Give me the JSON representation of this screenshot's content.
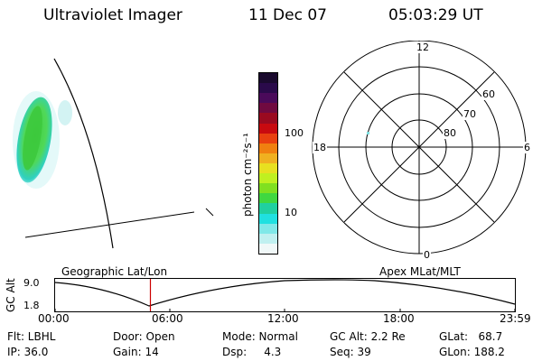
{
  "header": {
    "instrument": "Ultraviolet Imager",
    "date": "11 Dec 07",
    "time": "05:03:29 UT"
  },
  "colorbar": {
    "unit_label": "photon cm⁻²s⁻¹",
    "ticks": [
      "100",
      "10"
    ],
    "colors": [
      "#1a0a2e",
      "#2a0a4a",
      "#4a0a5a",
      "#700a40",
      "#9a0a20",
      "#c80a10",
      "#e84010",
      "#f08010",
      "#f0b020",
      "#e8e020",
      "#c0f020",
      "#80e020",
      "#40d840",
      "#20d0a0",
      "#20e0e0",
      "#80e8e8",
      "#c0f0f0",
      "#f0f8f8"
    ]
  },
  "polar_plot": {
    "mlt_labels": [
      "12",
      "18",
      "6",
      "0"
    ],
    "lat_labels": [
      "60",
      "70",
      "80"
    ]
  },
  "timeline": {
    "y_axis_label": "GC Alt",
    "y_ticks": [
      "9.0",
      "1.8"
    ],
    "left_title": "Geographic Lat/Lon",
    "right_title": "Apex MLat/MLT",
    "x_ticks": [
      "00:00",
      "06:00",
      "12:00",
      "18:00",
      "23:59"
    ],
    "current_marker_color": "#cc0000"
  },
  "status": {
    "flt": "Flt: LBHL",
    "ip": "IP: 36.0",
    "door": "Door: Open",
    "gain": "Gain: 14",
    "mode": "Mode: Normal",
    "dsp": "Dsp:     4.3",
    "gc_alt": "GC Alt: 2.2 Re",
    "seq": "Seq: 39",
    "glat": "GLat:   68.7",
    "glon": "GLon: 188.2"
  }
}
